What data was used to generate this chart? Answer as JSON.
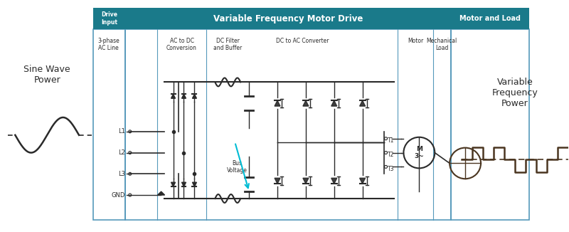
{
  "fig_width": 8.0,
  "fig_height": 3.26,
  "bg_color": "#ffffff",
  "header_color": "#1a7a8a",
  "header_text_color": "#ffffff",
  "border_color": "#5599bb",
  "dark_color": "#2a2a2a",
  "brown_color": "#4a3520",
  "cyan_color": "#00bcd4",
  "title_main": "Variable Frequency Motor Drive",
  "title_left": "Drive\nInput",
  "title_right": "Motor and Load",
  "subtitle_3phase": "3-phase\nAC Line",
  "subtitle_acdc": "AC to DC\nConversion",
  "subtitle_filter": "DC Filter\nand Buffer",
  "subtitle_dcac": "DC to AC Converter",
  "subtitle_motor": "Motor",
  "subtitle_mech": "Mechanical\nLoad",
  "label_sine": "Sine Wave\nPower",
  "label_vfp": "Variable\nFrequency\nPower",
  "label_bus": "Bus\nVoltage",
  "labels_L": [
    "L1",
    "L2",
    "L3",
    "GND"
  ]
}
